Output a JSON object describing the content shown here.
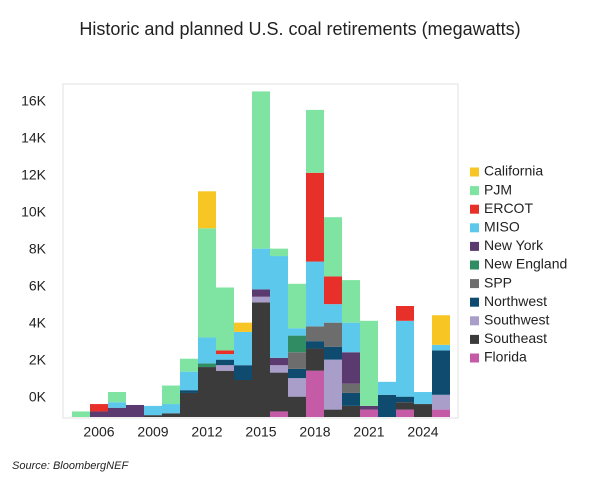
{
  "chart_data": {
    "type": "bar",
    "stacked": true,
    "title": "Historic and planned U.S. coal retirements (megawatts)",
    "source": "Source: BloombergNEF",
    "x": [
      2005,
      2006,
      2007,
      2008,
      2009,
      2010,
      2011,
      2012,
      2013,
      2014,
      2015,
      2016,
      2017,
      2018,
      2019,
      2020,
      2021,
      2022,
      2023,
      2024,
      2025
    ],
    "xlim": [
      2004.5,
      2025.5
    ],
    "xticks": [
      2006,
      2009,
      2012,
      2015,
      2018,
      2021,
      2024
    ],
    "ylim": [
      0,
      18000
    ],
    "yticks": [
      {
        "value": 0,
        "label": "0K"
      },
      {
        "value": 2000,
        "label": "2K"
      },
      {
        "value": 4000,
        "label": "4K"
      },
      {
        "value": 6000,
        "label": "6K"
      },
      {
        "value": 8000,
        "label": "8K"
      },
      {
        "value": 10000,
        "label": "10K"
      },
      {
        "value": 12000,
        "label": "12K"
      },
      {
        "value": 14000,
        "label": "14K"
      },
      {
        "value": 16000,
        "label": "16K"
      }
    ],
    "series": [
      {
        "name": "California",
        "color": "#f7c524",
        "values": [
          0,
          0,
          0,
          0,
          0,
          0,
          0,
          2000,
          0,
          500,
          0,
          0,
          0,
          0,
          0,
          0,
          0,
          0,
          0,
          0,
          1600
        ]
      },
      {
        "name": "PJM",
        "color": "#7fe3a1",
        "values": [
          300,
          0,
          550,
          0,
          0,
          1000,
          700,
          5900,
          3400,
          0,
          8500,
          400,
          2400,
          3400,
          3200,
          2300,
          4600,
          0,
          0,
          0,
          0
        ]
      },
      {
        "name": "ERCOT",
        "color": "#e8302a",
        "values": [
          0,
          400,
          0,
          0,
          0,
          0,
          0,
          0,
          200,
          0,
          0,
          0,
          0,
          4800,
          1500,
          0,
          0,
          0,
          800,
          0,
          0
        ]
      },
      {
        "name": "MISO",
        "color": "#5cc9ec",
        "values": [
          0,
          0,
          300,
          0,
          500,
          500,
          1000,
          1400,
          300,
          1800,
          2200,
          5500,
          400,
          3500,
          1000,
          1600,
          0,
          700,
          4100,
          650,
          300
        ]
      },
      {
        "name": "New York",
        "color": "#5b3a70",
        "values": [
          0,
          300,
          500,
          650,
          0,
          0,
          0,
          0,
          0,
          0,
          400,
          400,
          0,
          0,
          0,
          1700,
          200,
          0,
          0,
          0,
          0
        ]
      },
      {
        "name": "New England",
        "color": "#2f8c63",
        "values": [
          0,
          0,
          0,
          0,
          0,
          0,
          0,
          200,
          0,
          0,
          0,
          0,
          900,
          0,
          0,
          0,
          0,
          0,
          0,
          0,
          0
        ]
      },
      {
        "name": "SPP",
        "color": "#6d6d6d",
        "values": [
          0,
          0,
          0,
          0,
          0,
          0,
          0,
          0,
          0,
          0,
          0,
          0,
          900,
          800,
          1300,
          500,
          0,
          0,
          0,
          0,
          0
        ]
      },
      {
        "name": "Northwest",
        "color": "#0e4b6f",
        "values": [
          0,
          0,
          0,
          0,
          0,
          0,
          150,
          0,
          300,
          800,
          0,
          0,
          500,
          400,
          700,
          700,
          0,
          1200,
          300,
          0,
          2400
        ]
      },
      {
        "name": "Southwest",
        "color": "#a99dca",
        "values": [
          0,
          0,
          0,
          0,
          0,
          0,
          0,
          0,
          300,
          0,
          300,
          400,
          1000,
          0,
          2700,
          0,
          0,
          0,
          0,
          0,
          800
        ]
      },
      {
        "name": "Southeast",
        "color": "#3b3b3b",
        "values": [
          0,
          0,
          0,
          0,
          100,
          200,
          1300,
          2700,
          2500,
          2000,
          6200,
          2100,
          1100,
          1200,
          400,
          600,
          0,
          0,
          400,
          700,
          0
        ]
      },
      {
        "name": "Florida",
        "color": "#c55aa7",
        "values": [
          0,
          0,
          0,
          0,
          0,
          0,
          0,
          0,
          0,
          0,
          0,
          300,
          0,
          2500,
          0,
          0,
          400,
          0,
          400,
          0,
          400
        ]
      }
    ]
  }
}
